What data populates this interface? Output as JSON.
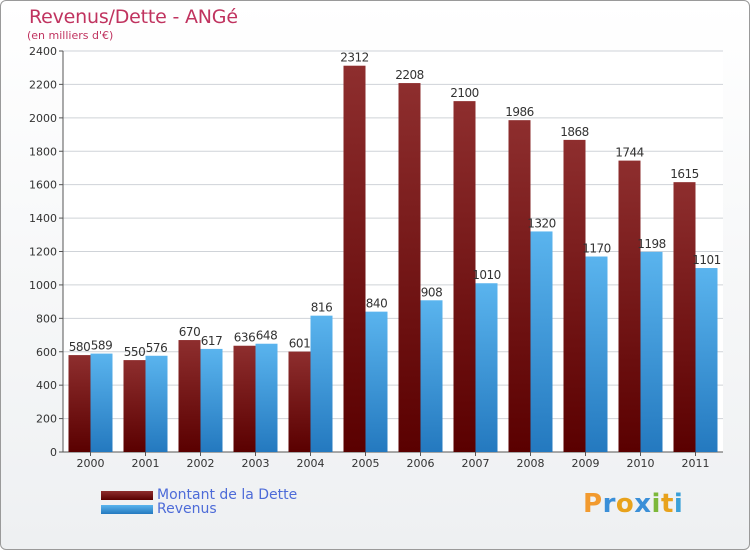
{
  "title": "Revenus/Dette - ANGé",
  "subtitle": "(en milliers d'€)",
  "brand": "Proxiti",
  "colors": {
    "dette": "#7a1a1a",
    "revenus": "#3ea0e6",
    "title": "#c0335f",
    "legend_text": "#4d6bd8"
  },
  "chart_data": {
    "type": "bar",
    "categories": [
      "2000",
      "2001",
      "2002",
      "2003",
      "2004",
      "2005",
      "2006",
      "2007",
      "2008",
      "2009",
      "2010",
      "2011"
    ],
    "series": [
      {
        "name": "Montant de la Dette",
        "values": [
          580,
          550,
          670,
          636,
          601,
          2312,
          2208,
          2100,
          1986,
          1868,
          1744,
          1615
        ]
      },
      {
        "name": "Revenus",
        "values": [
          589,
          576,
          617,
          648,
          816,
          840,
          908,
          1010,
          1320,
          1170,
          1198,
          1101
        ]
      }
    ],
    "ylim": [
      0,
      2400
    ],
    "yticks": [
      0,
      200,
      400,
      600,
      800,
      1000,
      1200,
      1400,
      1600,
      1800,
      2000,
      2200,
      2400
    ],
    "grid": true,
    "legend": "bottom-left"
  }
}
